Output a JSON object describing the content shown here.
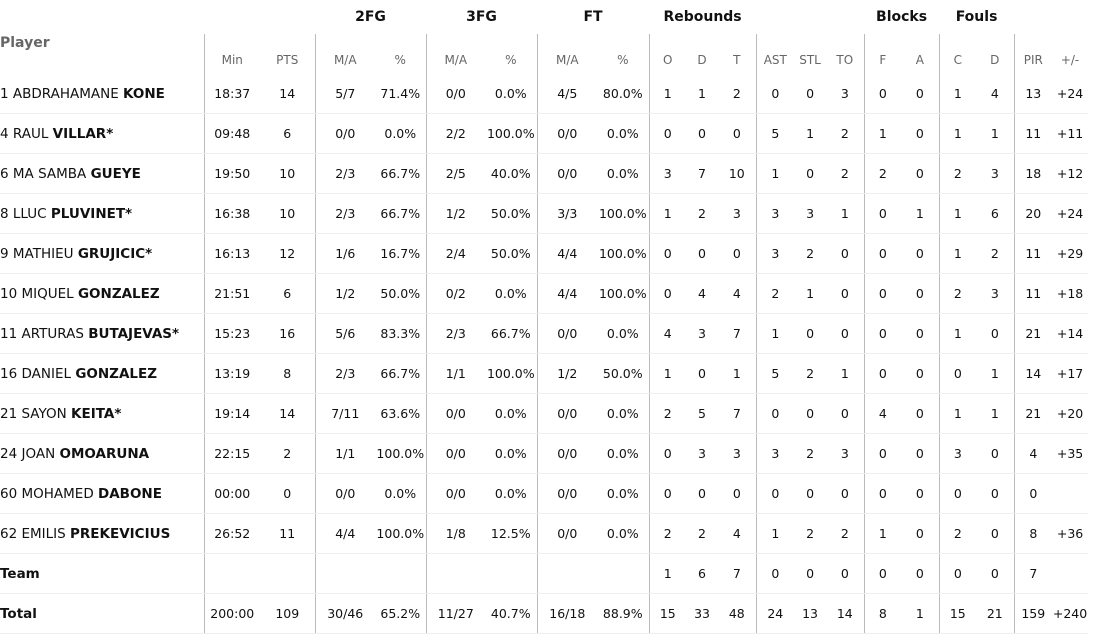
{
  "header": {
    "player": "Player",
    "groups": {
      "fg2": "2FG",
      "fg3": "3FG",
      "ft": "FT",
      "rebounds": "Rebounds",
      "blocks": "Blocks",
      "fouls": "Fouls"
    },
    "columns": [
      "Min",
      "PTS",
      "M/A",
      "%",
      "M/A",
      "%",
      "M/A",
      "%",
      "O",
      "D",
      "T",
      "AST",
      "STL",
      "TO",
      "F",
      "A",
      "C",
      "D",
      "PIR",
      "+/-"
    ]
  },
  "table": {
    "rows": [
      {
        "number": 1,
        "first": "ABDRAHAMANE",
        "last": "KONE",
        "stats": [
          "18:37",
          14,
          "5/7",
          "71.4%",
          "0/0",
          "0.0%",
          "4/5",
          "80.0%",
          1,
          1,
          2,
          0,
          0,
          3,
          0,
          0,
          1,
          4,
          13,
          "+24"
        ]
      },
      {
        "number": 4,
        "first": "RAUL",
        "last": "VILLAR*",
        "stats": [
          "09:48",
          6,
          "0/0",
          "0.0%",
          "2/2",
          "100.0%",
          "0/0",
          "0.0%",
          0,
          0,
          0,
          5,
          1,
          2,
          1,
          0,
          1,
          1,
          11,
          "+11"
        ]
      },
      {
        "number": 6,
        "first": "MA SAMBA",
        "last": "GUEYE",
        "stats": [
          "19:50",
          10,
          "2/3",
          "66.7%",
          "2/5",
          "40.0%",
          "0/0",
          "0.0%",
          3,
          7,
          10,
          1,
          0,
          2,
          2,
          0,
          2,
          3,
          18,
          "+12"
        ]
      },
      {
        "number": 8,
        "first": "LLUC",
        "last": "PLUVINET*",
        "stats": [
          "16:38",
          10,
          "2/3",
          "66.7%",
          "1/2",
          "50.0%",
          "3/3",
          "100.0%",
          1,
          2,
          3,
          3,
          3,
          1,
          0,
          1,
          1,
          6,
          20,
          "+24"
        ]
      },
      {
        "number": 9,
        "first": "MATHIEU",
        "last": "GRUJICIC*",
        "stats": [
          "16:13",
          12,
          "1/6",
          "16.7%",
          "2/4",
          "50.0%",
          "4/4",
          "100.0%",
          0,
          0,
          0,
          3,
          2,
          0,
          0,
          0,
          1,
          2,
          11,
          "+29"
        ]
      },
      {
        "number": 10,
        "first": "MIQUEL",
        "last": "GONZALEZ",
        "stats": [
          "21:51",
          6,
          "1/2",
          "50.0%",
          "0/2",
          "0.0%",
          "4/4",
          "100.0%",
          0,
          4,
          4,
          2,
          1,
          0,
          0,
          0,
          2,
          3,
          11,
          "+18"
        ]
      },
      {
        "number": 11,
        "first": "ARTURAS",
        "last": "BUTAJEVAS*",
        "stats": [
          "15:23",
          16,
          "5/6",
          "83.3%",
          "2/3",
          "66.7%",
          "0/0",
          "0.0%",
          4,
          3,
          7,
          1,
          0,
          0,
          0,
          0,
          1,
          0,
          21,
          "+14"
        ]
      },
      {
        "number": 16,
        "first": "DANIEL",
        "last": "GONZALEZ",
        "stats": [
          "13:19",
          8,
          "2/3",
          "66.7%",
          "1/1",
          "100.0%",
          "1/2",
          "50.0%",
          1,
          0,
          1,
          5,
          2,
          1,
          0,
          0,
          0,
          1,
          14,
          "+17"
        ]
      },
      {
        "number": 21,
        "first": "SAYON",
        "last": "KEITA*",
        "stats": [
          "19:14",
          14,
          "7/11",
          "63.6%",
          "0/0",
          "0.0%",
          "0/0",
          "0.0%",
          2,
          5,
          7,
          0,
          0,
          0,
          4,
          0,
          1,
          1,
          21,
          "+20"
        ]
      },
      {
        "number": 24,
        "first": "JOAN",
        "last": "OMOARUNA",
        "stats": [
          "22:15",
          2,
          "1/1",
          "100.0%",
          "0/0",
          "0.0%",
          "0/0",
          "0.0%",
          0,
          3,
          3,
          3,
          2,
          3,
          0,
          0,
          3,
          0,
          4,
          "+35"
        ]
      },
      {
        "number": 60,
        "first": "MOHAMED",
        "last": "DABONE",
        "stats": [
          "00:00",
          0,
          "0/0",
          "0.0%",
          "0/0",
          "0.0%",
          "0/0",
          "0.0%",
          0,
          0,
          0,
          0,
          0,
          0,
          0,
          0,
          0,
          0,
          0,
          null
        ]
      },
      {
        "number": 62,
        "first": "EMILIS",
        "last": "PREKEVICIUS",
        "stats": [
          "26:52",
          11,
          "4/4",
          "100.0%",
          "1/8",
          "12.5%",
          "0/0",
          "0.0%",
          2,
          2,
          4,
          1,
          2,
          2,
          1,
          0,
          2,
          0,
          8,
          "+36"
        ]
      },
      {
        "label": "Team",
        "stats": [
          null,
          null,
          null,
          null,
          null,
          null,
          null,
          null,
          1,
          6,
          7,
          0,
          0,
          0,
          0,
          0,
          0,
          0,
          7,
          null
        ]
      },
      {
        "label": "Total",
        "stats": [
          "200:00",
          109,
          "30/46",
          "65.2%",
          "11/27",
          "40.7%",
          "16/18",
          "88.9%",
          15,
          33,
          48,
          24,
          13,
          14,
          8,
          1,
          15,
          21,
          159,
          "+240"
        ]
      }
    ]
  }
}
